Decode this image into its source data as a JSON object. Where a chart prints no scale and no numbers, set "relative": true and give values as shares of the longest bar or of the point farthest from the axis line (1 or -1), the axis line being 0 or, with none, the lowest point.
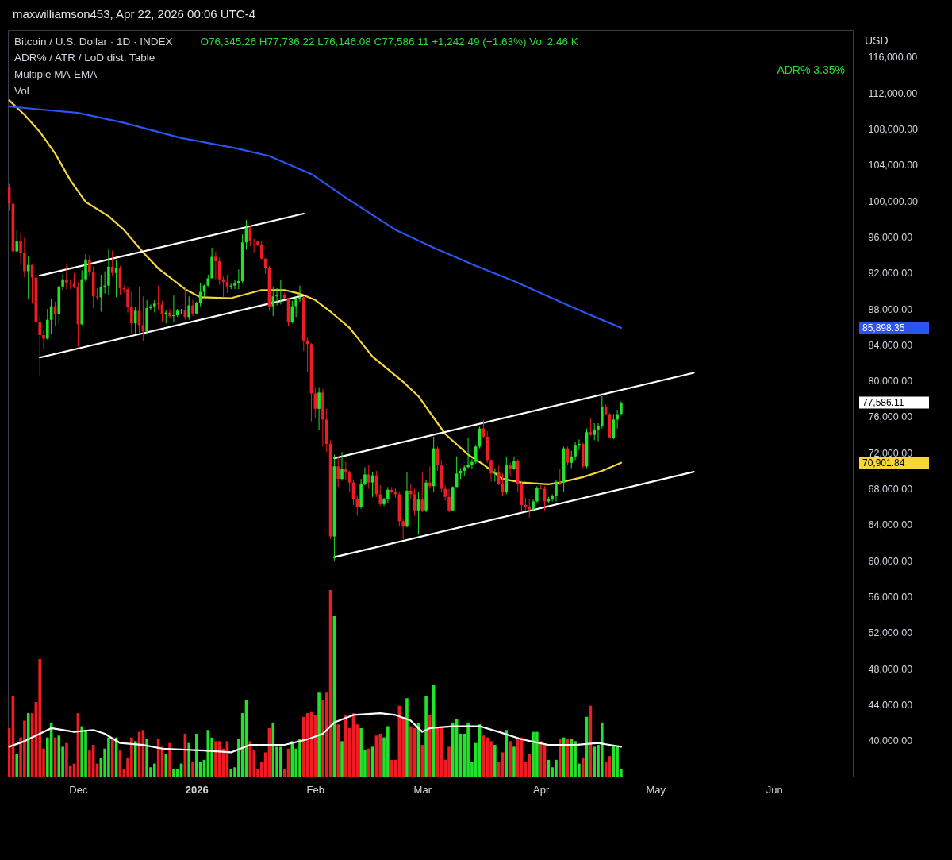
{
  "chart_data": [
    {
      "type": "candlestick",
      "title": "Bitcoin / U.S. Dollar · 1D · INDEX",
      "subtitle": "O76,345.26 H77,736.22 L76,146.08 C77,586.11 +1,242.49 (+1.63%) Vol 2.46 K",
      "annotations": [
        "maxwilliamson453, Apr 22, 2026 00:06 UTC-4",
        "ADR% / ATR / LoD dist. Table",
        "Multiple MA-EMA",
        "Vol",
        "ADR% 3.35%",
        "USD",
        "85,898.35",
        "77,586.11",
        "70,901.84"
      ],
      "x": [
        "2025-11-13",
        "2025-11-14",
        "2025-11-15",
        "2025-11-16",
        "2025-11-17",
        "2025-11-18",
        "2025-11-19",
        "2025-11-20",
        "2025-11-21",
        "2025-11-22",
        "2025-11-23",
        "2025-11-24",
        "2025-11-25",
        "2025-11-26",
        "2025-11-27",
        "2025-11-28",
        "2025-11-29",
        "2025-11-30",
        "2025-12-01",
        "2025-12-02",
        "2025-12-03",
        "2025-12-04",
        "2025-12-05",
        "2025-12-06",
        "2025-12-07",
        "2025-12-08",
        "2025-12-09",
        "2025-12-10",
        "2025-12-11",
        "2025-12-12",
        "2025-12-13",
        "2025-12-14",
        "2025-12-15",
        "2025-12-16",
        "2025-12-17",
        "2025-12-18",
        "2025-12-19",
        "2025-12-20",
        "2025-12-21",
        "2025-12-22",
        "2025-12-23",
        "2025-12-24",
        "2025-12-25",
        "2025-12-26",
        "2025-12-27",
        "2025-12-28",
        "2025-12-29",
        "2025-12-30",
        "2025-12-31",
        "2026-01-01",
        "2026-01-02",
        "2026-01-03",
        "2026-01-04",
        "2026-01-05",
        "2026-01-06",
        "2026-01-07",
        "2026-01-08",
        "2026-01-09",
        "2026-01-10",
        "2026-01-11",
        "2026-01-12",
        "2026-01-13",
        "2026-01-14",
        "2026-01-15",
        "2026-01-16",
        "2026-01-17",
        "2026-01-18",
        "2026-01-19",
        "2026-01-20",
        "2026-01-21",
        "2026-01-22",
        "2026-01-23",
        "2026-01-24",
        "2026-01-25",
        "2026-01-26",
        "2026-01-27",
        "2026-01-28",
        "2026-01-29",
        "2026-01-30",
        "2026-01-31",
        "2026-02-01",
        "2026-02-02",
        "2026-02-03",
        "2026-02-04",
        "2026-02-05",
        "2026-02-06",
        "2026-02-07",
        "2026-02-08",
        "2026-02-09",
        "2026-02-10",
        "2026-02-11",
        "2026-02-12",
        "2026-02-13",
        "2026-02-14",
        "2026-02-15",
        "2026-02-16",
        "2026-02-17",
        "2026-02-18",
        "2026-02-19",
        "2026-02-20",
        "2026-02-21",
        "2026-02-22",
        "2026-02-23",
        "2026-02-24",
        "2026-02-25",
        "2026-02-26",
        "2026-02-27",
        "2026-02-28",
        "2026-03-01",
        "2026-03-02",
        "2026-03-03",
        "2026-03-04",
        "2026-03-05",
        "2026-03-06",
        "2026-03-07",
        "2026-03-08",
        "2026-03-09",
        "2026-03-10",
        "2026-03-11",
        "2026-03-12",
        "2026-03-13",
        "2026-03-14",
        "2026-03-15",
        "2026-03-16",
        "2026-03-17",
        "2026-03-18",
        "2026-03-19",
        "2026-03-20",
        "2026-03-21",
        "2026-03-22",
        "2026-03-23",
        "2026-03-24",
        "2026-03-25",
        "2026-03-26",
        "2026-03-27",
        "2026-03-28",
        "2026-03-29",
        "2026-03-30",
        "2026-03-31",
        "2026-04-01",
        "2026-04-02",
        "2026-04-03",
        "2026-04-04",
        "2026-04-05",
        "2026-04-06",
        "2026-04-07",
        "2026-04-08",
        "2026-04-09",
        "2026-04-10",
        "2026-04-11",
        "2026-04-12",
        "2026-04-13",
        "2026-04-14",
        "2026-04-15",
        "2026-04-16",
        "2026-04-17",
        "2026-04-18",
        "2026-04-19",
        "2026-04-20",
        "2026-04-21",
        "2026-04-22"
      ],
      "ohlc": [
        [
          101600,
          101900,
          98900,
          99700
        ],
        [
          99700,
          99900,
          94100,
          94400
        ],
        [
          94400,
          96700,
          94400,
          95500
        ],
        [
          95500,
          96500,
          93100,
          94200
        ],
        [
          94200,
          95900,
          91500,
          92200
        ],
        [
          92200,
          93900,
          89100,
          92900
        ],
        [
          92900,
          92900,
          88600,
          91500
        ],
        [
          91500,
          93100,
          86100,
          86600
        ],
        [
          86600,
          87300,
          80500,
          85100
        ],
        [
          85100,
          85600,
          83500,
          84700
        ],
        [
          84700,
          88000,
          84600,
          86800
        ],
        [
          86800,
          89100,
          85200,
          88300
        ],
        [
          88300,
          88800,
          86100,
          87400
        ],
        [
          87400,
          90600,
          86300,
          90500
        ],
        [
          90500,
          91900,
          90100,
          91300
        ],
        [
          91300,
          93000,
          90200,
          90900
        ],
        [
          90900,
          91200,
          90200,
          90800
        ],
        [
          90800,
          92000,
          90300,
          90400
        ],
        [
          90400,
          91000,
          83800,
          86300
        ],
        [
          86300,
          92300,
          86200,
          91300
        ],
        [
          91300,
          94100,
          91000,
          93500
        ],
        [
          93500,
          94000,
          91700,
          92100
        ],
        [
          92100,
          92700,
          88100,
          89400
        ],
        [
          89400,
          90300,
          89000,
          89300
        ],
        [
          89300,
          91800,
          87700,
          90400
        ],
        [
          90400,
          92200,
          89700,
          90600
        ],
        [
          90600,
          94600,
          89600,
          92700
        ],
        [
          92700,
          94500,
          91600,
          92000
        ],
        [
          92000,
          93500,
          89300,
          92500
        ],
        [
          92500,
          92800,
          89500,
          90300
        ],
        [
          90300,
          90600,
          89800,
          90200
        ],
        [
          90200,
          90500,
          87600,
          88200
        ],
        [
          88200,
          90000,
          85200,
          86400
        ],
        [
          86400,
          88200,
          85300,
          87800
        ],
        [
          87800,
          90400,
          85300,
          86200
        ],
        [
          86200,
          89400,
          84400,
          85500
        ],
        [
          85500,
          89000,
          85300,
          88100
        ],
        [
          88100,
          88500,
          87900,
          88300
        ],
        [
          88300,
          89000,
          87600,
          88600
        ],
        [
          88600,
          90600,
          87900,
          88500
        ],
        [
          88500,
          88900,
          86600,
          87400
        ],
        [
          87400,
          87900,
          86400,
          87600
        ],
        [
          87600,
          88000,
          86900,
          87200
        ],
        [
          87200,
          89500,
          86600,
          87300
        ],
        [
          87300,
          88000,
          87100,
          87800
        ],
        [
          87800,
          88000,
          87400,
          87900
        ],
        [
          87900,
          90400,
          86800,
          87100
        ],
        [
          87100,
          89400,
          86800,
          88400
        ],
        [
          88400,
          89000,
          87200,
          87500
        ],
        [
          87500,
          88800,
          87400,
          88700
        ],
        [
          88700,
          90900,
          88300,
          89900
        ],
        [
          89900,
          90700,
          89300,
          90600
        ],
        [
          90600,
          91800,
          90500,
          91400
        ],
        [
          91400,
          94800,
          91400,
          93800
        ],
        [
          93800,
          94400,
          91300,
          93300
        ],
        [
          93300,
          93700,
          90700,
          91300
        ],
        [
          91300,
          91600,
          89300,
          91000
        ],
        [
          91000,
          91800,
          89800,
          90500
        ],
        [
          90500,
          90800,
          90200,
          90600
        ],
        [
          90600,
          91200,
          90200,
          90900
        ],
        [
          90900,
          92400,
          90200,
          91100
        ],
        [
          91100,
          96300,
          90900,
          95400
        ],
        [
          95400,
          97900,
          94600,
          97000
        ],
        [
          97000,
          97200,
          95000,
          95600
        ],
        [
          95600,
          95800,
          94300,
          95500
        ],
        [
          95500,
          95600,
          95000,
          95100
        ],
        [
          95100,
          95500,
          93500,
          93600
        ],
        [
          93600,
          93600,
          91900,
          92600
        ],
        [
          92600,
          92800,
          87800,
          88300
        ],
        [
          88300,
          90400,
          87200,
          89400
        ],
        [
          89400,
          90300,
          88400,
          89500
        ],
        [
          89500,
          91200,
          88500,
          89600
        ],
        [
          89600,
          89800,
          89100,
          89200
        ],
        [
          89200,
          89200,
          86100,
          86600
        ],
        [
          86600,
          88900,
          86400,
          88300
        ],
        [
          88300,
          89300,
          87100,
          89100
        ],
        [
          89100,
          90600,
          88800,
          89300
        ],
        [
          89300,
          89400,
          83300,
          84500
        ],
        [
          84500,
          84900,
          81000,
          84100
        ],
        [
          84100,
          84200,
          75500,
          78600
        ],
        [
          78600,
          79300,
          75900,
          76900
        ],
        [
          76900,
          79300,
          74500,
          78700
        ],
        [
          78700,
          79100,
          72700,
          75700
        ],
        [
          75700,
          76900,
          72100,
          73000
        ],
        [
          73000,
          73400,
          62400,
          62700
        ],
        [
          62700,
          71800,
          60000,
          70500
        ],
        [
          70500,
          71500,
          68200,
          69100
        ],
        [
          69100,
          72100,
          68900,
          70200
        ],
        [
          70200,
          71000,
          69000,
          69800
        ],
        [
          69800,
          70000,
          67700,
          68700
        ],
        [
          68700,
          69000,
          66200,
          66900
        ],
        [
          66900,
          67300,
          65000,
          66000
        ],
        [
          66000,
          69100,
          65800,
          68500
        ],
        [
          68500,
          70400,
          68400,
          69600
        ],
        [
          69600,
          70700,
          68000,
          68700
        ],
        [
          68700,
          69900,
          67100,
          69500
        ],
        [
          69500,
          70000,
          67100,
          67400
        ],
        [
          67400,
          68400,
          66100,
          66300
        ],
        [
          66300,
          67000,
          66100,
          66900
        ],
        [
          66900,
          68200,
          66400,
          67900
        ],
        [
          67900,
          68200,
          67500,
          67700
        ],
        [
          67700,
          68000,
          67000,
          67400
        ],
        [
          67400,
          67700,
          63800,
          64400
        ],
        [
          64400,
          64700,
          62400,
          63800
        ],
        [
          63800,
          69900,
          63700,
          67800
        ],
        [
          67800,
          68500,
          66900,
          67400
        ],
        [
          67400,
          68000,
          65000,
          65600
        ],
        [
          65600,
          67600,
          62900,
          66800
        ],
        [
          66800,
          69900,
          65400,
          65600
        ],
        [
          65600,
          69000,
          65400,
          68700
        ],
        [
          68700,
          70500,
          68000,
          68300
        ],
        [
          68300,
          73800,
          67700,
          72500
        ],
        [
          72500,
          72700,
          70000,
          70600
        ],
        [
          70600,
          71200,
          67600,
          68000
        ],
        [
          68000,
          68400,
          66700,
          67100
        ],
        [
          67100,
          68000,
          65400,
          65600
        ],
        [
          65600,
          68300,
          65600,
          68200
        ],
        [
          68200,
          71600,
          68200,
          69700
        ],
        [
          69700,
          70300,
          69100,
          70000
        ],
        [
          70000,
          70600,
          69400,
          70400
        ],
        [
          70400,
          73700,
          70300,
          70700
        ],
        [
          70700,
          71300,
          70200,
          71000
        ],
        [
          71000,
          72900,
          70800,
          72700
        ],
        [
          72700,
          74900,
          72500,
          74700
        ],
        [
          74700,
          75700,
          73700,
          73800
        ],
        [
          73800,
          74400,
          70900,
          71200
        ],
        [
          71200,
          71300,
          68800,
          69700
        ],
        [
          69700,
          70300,
          68800,
          69900
        ],
        [
          69900,
          70600,
          68400,
          68500
        ],
        [
          68500,
          69700,
          67200,
          67700
        ],
        [
          67700,
          71600,
          67400,
          70600
        ],
        [
          70600,
          70900,
          69400,
          70200
        ],
        [
          70200,
          71600,
          70100,
          71100
        ],
        [
          71100,
          71300,
          67600,
          68500
        ],
        [
          68500,
          68800,
          65400,
          66200
        ],
        [
          66200,
          67000,
          65600,
          66000
        ],
        [
          66000,
          66900,
          64800,
          65700
        ],
        [
          65700,
          66800,
          65600,
          66600
        ],
        [
          66600,
          68300,
          66500,
          68100
        ],
        [
          68100,
          68400,
          67900,
          68000
        ],
        [
          68000,
          68300,
          65600,
          66600
        ],
        [
          66600,
          67100,
          66400,
          66900
        ],
        [
          66900,
          67400,
          66600,
          67200
        ],
        [
          67200,
          69000,
          66600,
          68800
        ],
        [
          68800,
          70200,
          68400,
          68700
        ],
        [
          68700,
          72700,
          67700,
          72500
        ],
        [
          72500,
          72700,
          70600,
          70900
        ],
        [
          70900,
          72200,
          70300,
          71600
        ],
        [
          71600,
          73200,
          71200,
          72800
        ],
        [
          72800,
          73500,
          72300,
          73000
        ],
        [
          73000,
          73100,
          70300,
          70500
        ],
        [
          70500,
          74700,
          70300,
          74300
        ],
        [
          74300,
          75900,
          73900,
          74000
        ],
        [
          74000,
          75300,
          73400,
          74600
        ],
        [
          74600,
          75300,
          73300,
          75000
        ],
        [
          75000,
          78300,
          74700,
          77100
        ],
        [
          77100,
          77400,
          76200,
          76300
        ],
        [
          76300,
          76400,
          73700,
          73700
        ],
        [
          73700,
          76300,
          73500,
          75700
        ],
        [
          75700,
          76800,
          74700,
          76300
        ],
        [
          76345.26,
          77736.22,
          76146.08,
          77586.11
        ]
      ],
      "colors": [
        "#ee1c24",
        "#ee1c24",
        "#22e32c",
        "#ee1c24",
        "#ee1c24",
        "#22e32c",
        "#ee1c24",
        "#ee1c24",
        "#ee1c24",
        "#ee1c24",
        "#22e32c",
        "#22e32c",
        "#ee1c24",
        "#22e32c",
        "#22e32c",
        "#ee1c24",
        "#ee1c24",
        "#ee1c24",
        "#ee1c24",
        "#22e32c",
        "#22e32c",
        "#ee1c24",
        "#ee1c24",
        "#ee1c24",
        "#22e32c",
        "#22e32c",
        "#22e32c",
        "#ee1c24",
        "#22e32c",
        "#ee1c24",
        "#ee1c24",
        "#ee1c24",
        "#ee1c24",
        "#22e32c",
        "#ee1c24",
        "#ee1c24",
        "#22e32c",
        "#22e32c",
        "#22e32c",
        "#ee1c24",
        "#ee1c24",
        "#22e32c",
        "#ee1c24",
        "#22e32c",
        "#22e32c",
        "#22e32c",
        "#ee1c24",
        "#22e32c",
        "#ee1c24",
        "#22e32c",
        "#22e32c",
        "#22e32c",
        "#22e32c",
        "#22e32c",
        "#ee1c24",
        "#ee1c24",
        "#ee1c24",
        "#ee1c24",
        "#22e32c",
        "#22e32c",
        "#22e32c",
        "#22e32c",
        "#22e32c",
        "#ee1c24",
        "#ee1c24",
        "#ee1c24",
        "#ee1c24",
        "#ee1c24",
        "#ee1c24",
        "#22e32c",
        "#22e32c",
        "#22e32c",
        "#ee1c24",
        "#ee1c24",
        "#22e32c",
        "#22e32c",
        "#22e32c",
        "#ee1c24",
        "#ee1c24",
        "#ee1c24",
        "#ee1c24",
        "#22e32c",
        "#ee1c24",
        "#ee1c24",
        "#ee1c24",
        "#22e32c",
        "#ee1c24",
        "#22e32c",
        "#ee1c24",
        "#ee1c24",
        "#ee1c24",
        "#ee1c24",
        "#22e32c",
        "#22e32c",
        "#ee1c24",
        "#22e32c",
        "#ee1c24",
        "#ee1c24",
        "#22e32c",
        "#22e32c",
        "#ee1c24",
        "#ee1c24",
        "#ee1c24",
        "#ee1c24",
        "#22e32c",
        "#ee1c24",
        "#ee1c24",
        "#22e32c",
        "#ee1c24",
        "#22e32c",
        "#ee1c24",
        "#22e32c",
        "#ee1c24",
        "#ee1c24",
        "#ee1c24",
        "#ee1c24",
        "#22e32c",
        "#22e32c",
        "#22e32c",
        "#22e32c",
        "#22e32c",
        "#22e32c",
        "#22e32c",
        "#22e32c",
        "#ee1c24",
        "#ee1c24",
        "#ee1c24",
        "#22e32c",
        "#ee1c24",
        "#ee1c24",
        "#22e32c",
        "#ee1c24",
        "#22e32c",
        "#ee1c24",
        "#ee1c24",
        "#ee1c24",
        "#ee1c24",
        "#22e32c",
        "#22e32c",
        "#ee1c24",
        "#ee1c24",
        "#22e32c",
        "#22e32c",
        "#22e32c",
        "#ee1c24",
        "#22e32c",
        "#ee1c24",
        "#22e32c",
        "#22e32c",
        "#22e32c",
        "#ee1c24",
        "#22e32c",
        "#ee1c24",
        "#22e32c",
        "#22e32c",
        "#22e32c",
        "#ee1c24",
        "#ee1c24",
        "#22e32c",
        "#22e32c",
        "#22e32c"
      ],
      "series": [
        {
          "type": "line",
          "color": "#f5d73a",
          "x": [
            "2025-11-13",
            "2025-11-17",
            "2025-11-21",
            "2025-11-25",
            "2025-11-29",
            "2025-12-03",
            "2025-12-09",
            "2025-12-13",
            "2025-12-18",
            "2025-12-22",
            "2025-12-29",
            "2026-01-02",
            "2026-01-10",
            "2026-01-18",
            "2026-01-24",
            "2026-01-28",
            "2026-02-01",
            "2026-02-05",
            "2026-02-10",
            "2026-02-16",
            "2026-02-24",
            "2026-02-28",
            "2026-03-07",
            "2026-03-13",
            "2026-03-17",
            "2026-03-22",
            "2026-03-27",
            "2026-04-03",
            "2026-04-06",
            "2026-04-12",
            "2026-04-17",
            "2026-04-22"
          ],
          "values": [
            111200,
            109600,
            107700,
            105300,
            102300,
            99900,
            98300,
            96800,
            94300,
            92500,
            90200,
            89300,
            89200,
            90100,
            90100,
            89700,
            89000,
            87700,
            85900,
            82700,
            79900,
            78300,
            74100,
            71800,
            70700,
            69100,
            68700,
            68500,
            68700,
            69300,
            70000,
            70901.84
          ]
        },
        {
          "type": "line",
          "color": "#2b55f0",
          "x": [
            "2025-11-13",
            "2025-12-01",
            "2025-12-13",
            "2025-12-28",
            "2026-01-11",
            "2026-01-20",
            "2026-01-31",
            "2026-02-10",
            "2026-02-22",
            "2026-03-04",
            "2026-03-15",
            "2026-03-25",
            "2026-04-05",
            "2026-04-13",
            "2026-04-22"
          ],
          "values": [
            110500,
            109800,
            108700,
            107000,
            105900,
            105000,
            103000,
            100100,
            96800,
            94800,
            92800,
            91100,
            89000,
            87500,
            85898.35
          ]
        },
        {
          "type": "line",
          "color": "#ffffff",
          "x": [
            "2025-11-21",
            "2026-01-29"
          ],
          "values": [
            91700,
            98600
          ]
        },
        {
          "type": "line",
          "color": "#ffffff",
          "x": [
            "2025-11-21",
            "2026-01-29"
          ],
          "values": [
            82600,
            89500
          ]
        },
        {
          "type": "line",
          "color": "#ffffff",
          "x": [
            "2026-02-06",
            "2026-05-11"
          ],
          "values": [
            71400,
            80900
          ]
        },
        {
          "type": "line",
          "color": "#ffffff",
          "x": [
            "2026-02-06",
            "2026-05-11"
          ],
          "values": [
            60400,
            69900
          ]
        }
      ],
      "xlim": [
        "2025-11-12T16:00",
        "2026-06-21T14:00"
      ],
      "xticks": [
        {
          "value": "2025-12-01",
          "label": "Dec"
        },
        {
          "value": "2026-01-01",
          "label": "2026"
        },
        {
          "value": "2026-02-01",
          "label": "Feb"
        },
        {
          "value": "2026-03-01",
          "label": "Mar"
        },
        {
          "value": "2026-04-01",
          "label": "Apr"
        },
        {
          "value": "2026-05-01",
          "label": "May"
        },
        {
          "value": "2026-06-01",
          "label": "Jun"
        }
      ],
      "ylim": [
        36000,
        119000
      ],
      "yticks": [
        {
          "value": 40000,
          "label": "40,000.00"
        },
        {
          "value": 44000,
          "label": "44,000.00"
        },
        {
          "value": 48000,
          "label": "48,000.00"
        },
        {
          "value": 52000,
          "label": "52,000.00"
        },
        {
          "value": 56000,
          "label": "56,000.00"
        },
        {
          "value": 60000,
          "label": "60,000.00"
        },
        {
          "value": 64000,
          "label": "64,000.00"
        },
        {
          "value": 68000,
          "label": "68,000.00"
        },
        {
          "value": 72000,
          "label": "72,000.00"
        },
        {
          "value": 76000,
          "label": "76,000.00"
        },
        {
          "value": 80000,
          "label": "80,000.00"
        },
        {
          "value": 84000,
          "label": "84,000.00"
        },
        {
          "value": 88000,
          "label": "88,000.00"
        },
        {
          "value": 92000,
          "label": "92,000.00"
        },
        {
          "value": 96000,
          "label": "96,000.00"
        },
        {
          "value": 100000,
          "label": "100,000.00"
        },
        {
          "value": 104000,
          "label": "104,000.00"
        },
        {
          "value": 108000,
          "label": "108,000.00"
        },
        {
          "value": 112000,
          "label": "112,000.00"
        },
        {
          "value": 116000,
          "label": "116,000.00"
        }
      ]
    },
    {
      "type": "bar",
      "relative": true,
      "xlim": [
        "2025-11-12T16:00",
        "2026-06-21T14:00"
      ],
      "x": [
        "2025-11-13",
        "2025-11-14",
        "2025-11-15",
        "2025-11-16",
        "2025-11-17",
        "2025-11-18",
        "2025-11-19",
        "2025-11-20",
        "2025-11-21",
        "2025-11-22",
        "2025-11-23",
        "2025-11-24",
        "2025-11-25",
        "2025-11-26",
        "2025-11-27",
        "2025-11-28",
        "2025-11-29",
        "2025-11-30",
        "2025-12-01",
        "2025-12-02",
        "2025-12-03",
        "2025-12-04",
        "2025-12-05",
        "2025-12-06",
        "2025-12-07",
        "2025-12-08",
        "2025-12-09",
        "2025-12-10",
        "2025-12-11",
        "2025-12-12",
        "2025-12-13",
        "2025-12-14",
        "2025-12-15",
        "2025-12-16",
        "2025-12-17",
        "2025-12-18",
        "2025-12-19",
        "2025-12-20",
        "2025-12-21",
        "2025-12-22",
        "2025-12-23",
        "2025-12-24",
        "2025-12-25",
        "2025-12-26",
        "2025-12-27",
        "2025-12-28",
        "2025-12-29",
        "2025-12-30",
        "2025-12-31",
        "2026-01-01",
        "2026-01-02",
        "2026-01-03",
        "2026-01-04",
        "2026-01-05",
        "2026-01-06",
        "2026-01-07",
        "2026-01-08",
        "2026-01-09",
        "2026-01-10",
        "2026-01-11",
        "2026-01-12",
        "2026-01-13",
        "2026-01-14",
        "2026-01-15",
        "2026-01-16",
        "2026-01-17",
        "2026-01-18",
        "2026-01-19",
        "2026-01-20",
        "2026-01-21",
        "2026-01-22",
        "2026-01-23",
        "2026-01-24",
        "2026-01-25",
        "2026-01-26",
        "2026-01-27",
        "2026-01-28",
        "2026-01-29",
        "2026-01-30",
        "2026-01-31",
        "2026-02-01",
        "2026-02-02",
        "2026-02-03",
        "2026-02-04",
        "2026-02-05",
        "2026-02-06",
        "2026-02-07",
        "2026-02-08",
        "2026-02-09",
        "2026-02-10",
        "2026-02-11",
        "2026-02-12",
        "2026-02-13",
        "2026-02-14",
        "2026-02-15",
        "2026-02-16",
        "2026-02-17",
        "2026-02-18",
        "2026-02-19",
        "2026-02-20",
        "2026-02-21",
        "2026-02-22",
        "2026-02-23",
        "2026-02-24",
        "2026-02-25",
        "2026-02-26",
        "2026-02-27",
        "2026-02-28",
        "2026-03-01",
        "2026-03-02",
        "2026-03-03",
        "2026-03-04",
        "2026-03-05",
        "2026-03-06",
        "2026-03-07",
        "2026-03-08",
        "2026-03-09",
        "2026-03-10",
        "2026-03-11",
        "2026-03-12",
        "2026-03-13",
        "2026-03-14",
        "2026-03-15",
        "2026-03-16",
        "2026-03-17",
        "2026-03-18",
        "2026-03-19",
        "2026-03-20",
        "2026-03-21",
        "2026-03-22",
        "2026-03-23",
        "2026-03-24",
        "2026-03-25",
        "2026-03-26",
        "2026-03-27",
        "2026-03-28",
        "2026-03-29",
        "2026-03-30",
        "2026-03-31",
        "2026-04-01",
        "2026-04-02",
        "2026-04-03",
        "2026-04-04",
        "2026-04-05",
        "2026-04-06",
        "2026-04-07",
        "2026-04-08",
        "2026-04-09",
        "2026-04-10",
        "2026-04-11",
        "2026-04-12",
        "2026-04-13",
        "2026-04-14",
        "2026-04-15",
        "2026-04-16",
        "2026-04-17",
        "2026-04-18",
        "2026-04-19",
        "2026-04-20",
        "2026-04-21",
        "2026-04-22"
      ],
      "series": [
        {
          "type": "bar",
          "values": [
            0.26,
            0.43,
            0.12,
            0.21,
            0.3,
            0.34,
            0.34,
            0.4,
            0.63,
            0.15,
            0.21,
            0.29,
            0.21,
            0.22,
            0.16,
            0.18,
            0.06,
            0.07,
            0.34,
            0.27,
            0.25,
            0.14,
            0.17,
            0.07,
            0.1,
            0.15,
            0.21,
            0.2,
            0.21,
            0.14,
            0.04,
            0.1,
            0.21,
            0.19,
            0.24,
            0.25,
            0.2,
            0.05,
            0.07,
            0.2,
            0.16,
            0.12,
            0.18,
            0.04,
            0.04,
            0.07,
            0.23,
            0.18,
            0.08,
            0.23,
            0.08,
            0.09,
            0.25,
            0.21,
            0.19,
            0.19,
            0.15,
            0.19,
            0.04,
            0.05,
            0.2,
            0.34,
            0.41,
            0.19,
            0.14,
            0.04,
            0.08,
            0.13,
            0.26,
            0.29,
            0.16,
            0.16,
            0.04,
            0.15,
            0.19,
            0.15,
            0.2,
            0.32,
            0.34,
            0.35,
            0.33,
            0.45,
            0.41,
            0.45,
            1,
            0.86,
            0.28,
            0.19,
            0.33,
            0.26,
            0.34,
            0.28,
            0.26,
            0.14,
            0.15,
            0.16,
            0.22,
            0.23,
            0.21,
            0.27,
            0.09,
            0.09,
            0.38,
            0.32,
            0.42,
            0.27,
            0.26,
            0.29,
            0.17,
            0.43,
            0.33,
            0.49,
            0.26,
            0.26,
            0.09,
            0.16,
            0.29,
            0.31,
            0.23,
            0.23,
            0.29,
            0.08,
            0.18,
            0.28,
            0.22,
            0.21,
            0.19,
            0.17,
            0.08,
            0.13,
            0.25,
            0.19,
            0.16,
            0.2,
            0.21,
            0.08,
            0.12,
            0.24,
            0.24,
            0.19,
            0.17,
            0.09,
            0.05,
            0.09,
            0.2,
            0.21,
            0.2,
            0.2,
            0.19,
            0.07,
            0.1,
            0.32,
            0.38,
            0.16,
            0.17,
            0.29,
            0.08,
            0.11,
            0.17,
            0.16,
            0.04
          ],
          "colors": [
            "#ee1c24",
            "#ee1c24",
            "#22e32c",
            "#ee1c24",
            "#ee1c24",
            "#22e32c",
            "#ee1c24",
            "#ee1c24",
            "#ee1c24",
            "#ee1c24",
            "#22e32c",
            "#22e32c",
            "#ee1c24",
            "#22e32c",
            "#22e32c",
            "#ee1c24",
            "#ee1c24",
            "#ee1c24",
            "#ee1c24",
            "#22e32c",
            "#22e32c",
            "#ee1c24",
            "#ee1c24",
            "#ee1c24",
            "#22e32c",
            "#22e32c",
            "#22e32c",
            "#ee1c24",
            "#22e32c",
            "#ee1c24",
            "#ee1c24",
            "#ee1c24",
            "#ee1c24",
            "#22e32c",
            "#ee1c24",
            "#ee1c24",
            "#22e32c",
            "#22e32c",
            "#22e32c",
            "#ee1c24",
            "#ee1c24",
            "#22e32c",
            "#ee1c24",
            "#22e32c",
            "#22e32c",
            "#22e32c",
            "#ee1c24",
            "#22e32c",
            "#ee1c24",
            "#22e32c",
            "#22e32c",
            "#22e32c",
            "#22e32c",
            "#22e32c",
            "#ee1c24",
            "#ee1c24",
            "#ee1c24",
            "#ee1c24",
            "#22e32c",
            "#22e32c",
            "#22e32c",
            "#22e32c",
            "#22e32c",
            "#ee1c24",
            "#ee1c24",
            "#ee1c24",
            "#ee1c24",
            "#ee1c24",
            "#ee1c24",
            "#22e32c",
            "#22e32c",
            "#22e32c",
            "#ee1c24",
            "#ee1c24",
            "#22e32c",
            "#22e32c",
            "#22e32c",
            "#ee1c24",
            "#ee1c24",
            "#ee1c24",
            "#ee1c24",
            "#22e32c",
            "#ee1c24",
            "#ee1c24",
            "#ee1c24",
            "#22e32c",
            "#ee1c24",
            "#22e32c",
            "#ee1c24",
            "#ee1c24",
            "#ee1c24",
            "#ee1c24",
            "#22e32c",
            "#22e32c",
            "#ee1c24",
            "#22e32c",
            "#ee1c24",
            "#ee1c24",
            "#22e32c",
            "#22e32c",
            "#ee1c24",
            "#ee1c24",
            "#ee1c24",
            "#ee1c24",
            "#22e32c",
            "#ee1c24",
            "#ee1c24",
            "#22e32c",
            "#ee1c24",
            "#22e32c",
            "#ee1c24",
            "#22e32c",
            "#ee1c24",
            "#ee1c24",
            "#ee1c24",
            "#ee1c24",
            "#22e32c",
            "#22e32c",
            "#22e32c",
            "#22e32c",
            "#22e32c",
            "#22e32c",
            "#22e32c",
            "#22e32c",
            "#ee1c24",
            "#ee1c24",
            "#ee1c24",
            "#22e32c",
            "#ee1c24",
            "#ee1c24",
            "#22e32c",
            "#ee1c24",
            "#22e32c",
            "#ee1c24",
            "#ee1c24",
            "#ee1c24",
            "#ee1c24",
            "#22e32c",
            "#22e32c",
            "#ee1c24",
            "#ee1c24",
            "#22e32c",
            "#22e32c",
            "#22e32c",
            "#ee1c24",
            "#22e32c",
            "#ee1c24",
            "#22e32c",
            "#22e32c",
            "#22e32c",
            "#ee1c24",
            "#22e32c",
            "#ee1c24",
            "#22e32c",
            "#22e32c",
            "#22e32c",
            "#ee1c24",
            "#ee1c24",
            "#22e32c",
            "#22e32c",
            "#22e32c"
          ]
        },
        {
          "type": "line",
          "color": "#ffffff",
          "x": [
            "2025-11-13",
            "2025-11-17",
            "2025-11-21",
            "2025-11-24",
            "2025-11-30",
            "2025-12-05",
            "2025-12-08",
            "2025-12-12",
            "2025-12-18",
            "2025-12-23",
            "2026-01-03",
            "2026-01-10",
            "2026-01-15",
            "2026-01-24",
            "2026-01-30",
            "2026-02-03",
            "2026-02-06",
            "2026-02-11",
            "2026-02-18",
            "2026-02-22",
            "2026-02-26",
            "2026-03-01",
            "2026-03-03",
            "2026-03-09",
            "2026-03-16",
            "2026-03-21",
            "2026-03-27",
            "2026-04-03",
            "2026-04-10",
            "2026-04-16",
            "2026-04-22"
          ],
          "values": [
            0.16,
            0.19,
            0.23,
            0.26,
            0.24,
            0.25,
            0.23,
            0.18,
            0.17,
            0.15,
            0.14,
            0.13,
            0.17,
            0.17,
            0.2,
            0.23,
            0.29,
            0.33,
            0.34,
            0.33,
            0.3,
            0.24,
            0.26,
            0.27,
            0.27,
            0.24,
            0.2,
            0.17,
            0.17,
            0.18,
            0.16
          ]
        }
      ]
    }
  ]
}
